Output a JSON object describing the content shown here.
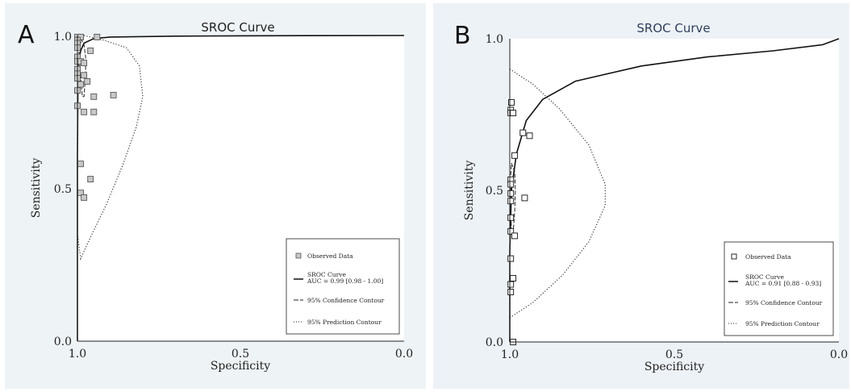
{
  "chart_data": [
    {
      "type": "scatter",
      "panel_label": "A",
      "title": "SROC Curve",
      "xlabel": "Specificity",
      "ylabel": "Sensitivity",
      "x_reversed": true,
      "xlim": [
        1.0,
        0.0
      ],
      "ylim": [
        0.0,
        1.0
      ],
      "xticks": [
        "1.0",
        "0.5",
        "0.0"
      ],
      "yticks": [
        "0.0",
        "0.5",
        "1.0"
      ],
      "legend": {
        "position": "bottom-right",
        "observed": "Observed Data",
        "sroc": "SROC Curve",
        "auc": "AUC = 0.99 [0.98 - 1.00]",
        "confidence": "95% Confidence Contour",
        "prediction": "95% Prediction Contour"
      },
      "points": [
        {
          "spec": 1.0,
          "sens": 0.995
        },
        {
          "spec": 0.99,
          "sens": 0.995
        },
        {
          "spec": 0.94,
          "sens": 0.995
        },
        {
          "spec": 1.0,
          "sens": 0.985
        },
        {
          "spec": 1.0,
          "sens": 0.975
        },
        {
          "spec": 1.0,
          "sens": 0.96
        },
        {
          "spec": 0.96,
          "sens": 0.95
        },
        {
          "spec": 1.0,
          "sens": 0.93
        },
        {
          "spec": 1.0,
          "sens": 0.915
        },
        {
          "spec": 0.99,
          "sens": 0.915
        },
        {
          "spec": 0.98,
          "sens": 0.91
        },
        {
          "spec": 1.0,
          "sens": 0.89
        },
        {
          "spec": 1.0,
          "sens": 0.875
        },
        {
          "spec": 1.0,
          "sens": 0.86
        },
        {
          "spec": 0.98,
          "sens": 0.87
        },
        {
          "spec": 0.97,
          "sens": 0.85
        },
        {
          "spec": 0.99,
          "sens": 0.84
        },
        {
          "spec": 1.0,
          "sens": 0.82
        },
        {
          "spec": 0.95,
          "sens": 0.8
        },
        {
          "spec": 0.89,
          "sens": 0.805
        },
        {
          "spec": 1.0,
          "sens": 0.77
        },
        {
          "spec": 0.98,
          "sens": 0.75
        },
        {
          "spec": 0.95,
          "sens": 0.75
        },
        {
          "spec": 0.99,
          "sens": 0.58
        },
        {
          "spec": 0.96,
          "sens": 0.53
        },
        {
          "spec": 0.99,
          "sens": 0.485
        },
        {
          "spec": 0.98,
          "sens": 0.47
        }
      ],
      "sroc_curve": [
        {
          "spec": 1.0,
          "sens": 0.0
        },
        {
          "spec": 1.0,
          "sens": 0.6
        },
        {
          "spec": 0.998,
          "sens": 0.9
        },
        {
          "spec": 0.99,
          "sens": 0.95
        },
        {
          "spec": 0.98,
          "sens": 0.975
        },
        {
          "spec": 0.95,
          "sens": 0.99
        },
        {
          "spec": 0.9,
          "sens": 0.995
        },
        {
          "spec": 0.7,
          "sens": 0.998
        },
        {
          "spec": 0.5,
          "sens": 0.999
        },
        {
          "spec": 0.3,
          "sens": 0.9995
        },
        {
          "spec": 0.0,
          "sens": 1.0
        }
      ],
      "confidence_contour": [
        {
          "spec": 0.99,
          "sens": 0.99
        },
        {
          "spec": 0.98,
          "sens": 0.97
        },
        {
          "spec": 0.975,
          "sens": 0.93
        },
        {
          "spec": 0.975,
          "sens": 0.87
        },
        {
          "spec": 0.98,
          "sens": 0.8
        },
        {
          "spec": 0.985,
          "sens": 0.8
        },
        {
          "spec": 0.99,
          "sens": 0.86
        },
        {
          "spec": 0.995,
          "sens": 0.94
        },
        {
          "spec": 0.995,
          "sens": 0.98
        },
        {
          "spec": 0.99,
          "sens": 0.99
        }
      ],
      "prediction_contour": [
        {
          "spec": 0.98,
          "sens": 1.0
        },
        {
          "spec": 0.92,
          "sens": 0.985
        },
        {
          "spec": 0.85,
          "sens": 0.96
        },
        {
          "spec": 0.81,
          "sens": 0.9
        },
        {
          "spec": 0.8,
          "sens": 0.8
        },
        {
          "spec": 0.82,
          "sens": 0.7
        },
        {
          "spec": 0.86,
          "sens": 0.58
        },
        {
          "spec": 0.91,
          "sens": 0.45
        },
        {
          "spec": 0.96,
          "sens": 0.34
        },
        {
          "spec": 0.99,
          "sens": 0.27
        },
        {
          "spec": 1.0,
          "sens": 0.35
        },
        {
          "spec": 1.0,
          "sens": 0.7
        },
        {
          "spec": 1.0,
          "sens": 0.95
        },
        {
          "spec": 0.98,
          "sens": 1.0
        }
      ]
    },
    {
      "type": "scatter",
      "panel_label": "B",
      "title": "SROC Curve",
      "xlabel": "Specificity",
      "ylabel": "Sensitivity",
      "x_reversed": true,
      "xlim": [
        1.0,
        0.0
      ],
      "ylim": [
        0.0,
        1.0
      ],
      "xticks": [
        "1.0",
        "0.5",
        "0.0"
      ],
      "yticks": [
        "0.0",
        "0.5",
        "1.0"
      ],
      "legend": {
        "position": "bottom-right",
        "observed": "Observed Data",
        "sroc": "SROC Curve",
        "auc": "AUC = 0.91 [0.88 - 0.93]",
        "confidence": "95% Confidence Contour",
        "prediction": "95% Prediction Contour"
      },
      "points": [
        {
          "spec": 0.995,
          "sens": 0.79
        },
        {
          "spec": 0.997,
          "sens": 0.765
        },
        {
          "spec": 0.997,
          "sens": 0.755
        },
        {
          "spec": 0.99,
          "sens": 0.755
        },
        {
          "spec": 0.96,
          "sens": 0.69
        },
        {
          "spec": 0.94,
          "sens": 0.68
        },
        {
          "spec": 0.985,
          "sens": 0.615
        },
        {
          "spec": 0.997,
          "sens": 0.535
        },
        {
          "spec": 0.997,
          "sens": 0.52
        },
        {
          "spec": 0.997,
          "sens": 0.49
        },
        {
          "spec": 0.997,
          "sens": 0.465
        },
        {
          "spec": 0.955,
          "sens": 0.475
        },
        {
          "spec": 0.997,
          "sens": 0.41
        },
        {
          "spec": 0.997,
          "sens": 0.365
        },
        {
          "spec": 0.985,
          "sens": 0.35
        },
        {
          "spec": 0.997,
          "sens": 0.275
        },
        {
          "spec": 0.99,
          "sens": 0.21
        },
        {
          "spec": 0.997,
          "sens": 0.19
        },
        {
          "spec": 0.997,
          "sens": 0.165
        },
        {
          "spec": 0.99,
          "sens": 0.0
        }
      ],
      "sroc_curve": [
        {
          "spec": 1.0,
          "sens": 0.0
        },
        {
          "spec": 1.0,
          "sens": 0.3
        },
        {
          "spec": 0.995,
          "sens": 0.5
        },
        {
          "spec": 0.98,
          "sens": 0.62
        },
        {
          "spec": 0.95,
          "sens": 0.73
        },
        {
          "spec": 0.9,
          "sens": 0.8
        },
        {
          "spec": 0.8,
          "sens": 0.86
        },
        {
          "spec": 0.6,
          "sens": 0.91
        },
        {
          "spec": 0.4,
          "sens": 0.94
        },
        {
          "spec": 0.2,
          "sens": 0.96
        },
        {
          "spec": 0.05,
          "sens": 0.98
        },
        {
          "spec": 0.0,
          "sens": 1.0
        }
      ],
      "confidence_contour": [
        {
          "spec": 0.995,
          "sens": 0.59
        },
        {
          "spec": 0.985,
          "sens": 0.56
        },
        {
          "spec": 0.983,
          "sens": 0.5
        },
        {
          "spec": 0.985,
          "sens": 0.43
        },
        {
          "spec": 0.99,
          "sens": 0.36
        },
        {
          "spec": 0.995,
          "sens": 0.36
        },
        {
          "spec": 0.997,
          "sens": 0.45
        },
        {
          "spec": 0.997,
          "sens": 0.55
        },
        {
          "spec": 0.995,
          "sens": 0.59
        }
      ],
      "prediction_contour": [
        {
          "spec": 1.0,
          "sens": 0.9
        },
        {
          "spec": 0.93,
          "sens": 0.85
        },
        {
          "spec": 0.85,
          "sens": 0.77
        },
        {
          "spec": 0.76,
          "sens": 0.65
        },
        {
          "spec": 0.71,
          "sens": 0.52
        },
        {
          "spec": 0.71,
          "sens": 0.45
        },
        {
          "spec": 0.76,
          "sens": 0.33
        },
        {
          "spec": 0.84,
          "sens": 0.22
        },
        {
          "spec": 0.93,
          "sens": 0.13
        },
        {
          "spec": 1.0,
          "sens": 0.08
        }
      ]
    }
  ],
  "colors": {
    "panel_a_background": "#eef3f6",
    "panel_b_background": "#edf2f7",
    "panel_b_title": "#2f3f5e",
    "marker_a_fill": "#c8c8c8",
    "marker_b_fill": "#ffffff"
  }
}
